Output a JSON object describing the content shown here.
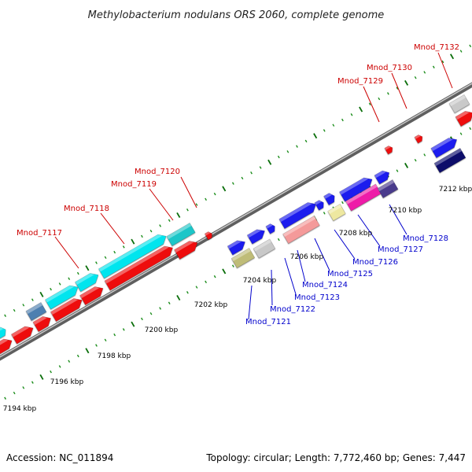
{
  "title": "Methylobacterium nodulans ORS 2060, complete genome",
  "footer": {
    "accession": "Accession: NC_011894",
    "summary": "Topology: circular; Length: 7,772,460 bp; Genes: 7,447"
  },
  "colors": {
    "backbone": "#8c8c8c",
    "tick_major": "#0a6e0a",
    "tick_minor": "#1a8c1a",
    "label_top": "#cc0000",
    "label_bottom": "#0000cc"
  },
  "axis": {
    "kbp_ticks": [
      "7194 kbp",
      "7196 kbp",
      "7198 kbp",
      "7200 kbp",
      "7202 kbp",
      "7204 kbp",
      "7206 kbp",
      "7208 kbp",
      "7210 kbp",
      "7212 kbp"
    ]
  },
  "genes_top": [
    {
      "label": "Mnod_7117"
    },
    {
      "label": "Mnod_7118"
    },
    {
      "label": "Mnod_7119"
    },
    {
      "label": "Mnod_7120"
    },
    {
      "label": "Mnod_7129"
    },
    {
      "label": "Mnod_7130"
    },
    {
      "label": "Mnod_7132"
    }
  ],
  "genes_bottom": [
    {
      "label": "Mnod_7121"
    },
    {
      "label": "Mnod_7122"
    },
    {
      "label": "Mnod_7123"
    },
    {
      "label": "Mnod_7124"
    },
    {
      "label": "Mnod_7125"
    },
    {
      "label": "Mnod_7126"
    },
    {
      "label": "Mnod_7127"
    },
    {
      "label": "Mnod_7128"
    }
  ]
}
